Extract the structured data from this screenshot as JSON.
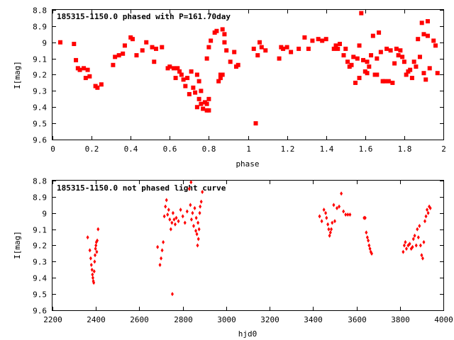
{
  "chart_data": [
    {
      "type": "scatter",
      "title": "185315-1150.0 phased with P=161.70day",
      "xlabel": "phase",
      "ylabel": "I[mag]",
      "xlim": [
        0,
        2
      ],
      "ylim": [
        8.8,
        9.6
      ],
      "y_inverted": true,
      "grid": false,
      "marker": "filled-square",
      "color": "#ff0000",
      "x_ticks": [
        0,
        0.2,
        0.4,
        0.6,
        0.8,
        1,
        1.2,
        1.4,
        1.6,
        1.8,
        2
      ],
      "x_tick_labels": [
        "0",
        "0.2",
        "0.4",
        "0.6",
        "0.8",
        "1",
        "1.2",
        "1.4",
        "1.6",
        "1.8",
        "2"
      ],
      "y_ticks": [
        8.8,
        8.9,
        9.0,
        9.1,
        9.2,
        9.3,
        9.4,
        9.5,
        9.6
      ],
      "y_tick_labels": [
        "8.8",
        "8.9",
        "9",
        "9.1",
        "9.2",
        "9.3",
        "9.4",
        "9.5",
        "9.6"
      ],
      "points": [
        [
          0.04,
          9.0
        ],
        [
          0.11,
          9.01
        ],
        [
          0.12,
          9.11
        ],
        [
          0.13,
          9.16
        ],
        [
          0.14,
          9.17
        ],
        [
          0.16,
          9.16
        ],
        [
          0.17,
          9.22
        ],
        [
          0.18,
          9.17
        ],
        [
          0.19,
          9.21
        ],
        [
          0.22,
          9.27
        ],
        [
          0.23,
          9.28
        ],
        [
          0.25,
          9.26
        ],
        [
          0.31,
          9.14
        ],
        [
          0.32,
          9.09
        ],
        [
          0.34,
          9.08
        ],
        [
          0.36,
          9.07
        ],
        [
          0.37,
          9.02
        ],
        [
          0.4,
          8.97
        ],
        [
          0.41,
          8.98
        ],
        [
          0.43,
          9.08
        ],
        [
          0.46,
          9.05
        ],
        [
          0.48,
          9.0
        ],
        [
          0.51,
          9.03
        ],
        [
          0.52,
          9.12
        ],
        [
          0.53,
          9.04
        ],
        [
          0.56,
          9.03
        ],
        [
          0.59,
          9.16
        ],
        [
          0.6,
          9.15
        ],
        [
          0.62,
          9.16
        ],
        [
          0.63,
          9.22
        ],
        [
          0.64,
          9.16
        ],
        [
          0.65,
          9.18
        ],
        [
          0.66,
          9.2
        ],
        [
          0.67,
          9.23
        ],
        [
          0.68,
          9.27
        ],
        [
          0.69,
          9.22
        ],
        [
          0.7,
          9.32
        ],
        [
          0.71,
          9.18
        ],
        [
          0.72,
          9.28
        ],
        [
          0.73,
          9.31
        ],
        [
          0.74,
          9.2
        ],
        [
          0.74,
          9.4
        ],
        [
          0.75,
          9.35
        ],
        [
          0.75,
          9.24
        ],
        [
          0.76,
          9.38
        ],
        [
          0.76,
          9.3
        ],
        [
          0.77,
          9.41
        ],
        [
          0.78,
          9.37
        ],
        [
          0.79,
          9.42
        ],
        [
          0.79,
          9.38
        ],
        [
          0.8,
          9.42
        ],
        [
          0.8,
          9.35
        ],
        [
          0.79,
          9.1
        ],
        [
          0.8,
          9.03
        ],
        [
          0.81,
          8.99
        ],
        [
          0.83,
          8.94
        ],
        [
          0.84,
          8.93
        ],
        [
          0.85,
          9.24
        ],
        [
          0.86,
          9.2
        ],
        [
          0.86,
          9.22
        ],
        [
          0.87,
          9.2
        ],
        [
          0.87,
          8.92
        ],
        [
          0.88,
          8.95
        ],
        [
          0.88,
          9.0
        ],
        [
          0.89,
          9.05
        ],
        [
          0.91,
          9.12
        ],
        [
          0.93,
          9.06
        ],
        [
          0.94,
          9.15
        ],
        [
          0.95,
          9.14
        ],
        [
          1.03,
          9.04
        ],
        [
          1.04,
          9.5
        ],
        [
          1.05,
          9.08
        ],
        [
          1.06,
          9.0
        ],
        [
          1.07,
          9.03
        ],
        [
          1.09,
          9.05
        ],
        [
          1.16,
          9.1
        ],
        [
          1.17,
          9.03
        ],
        [
          1.18,
          9.04
        ],
        [
          1.2,
          9.03
        ],
        [
          1.22,
          9.06
        ],
        [
          1.26,
          9.04
        ],
        [
          1.29,
          8.97
        ],
        [
          1.31,
          9.04
        ],
        [
          1.33,
          8.99
        ],
        [
          1.36,
          8.98
        ],
        [
          1.38,
          8.99
        ],
        [
          1.4,
          8.98
        ],
        [
          1.44,
          9.04
        ],
        [
          1.45,
          9.02
        ],
        [
          1.46,
          9.04
        ],
        [
          1.47,
          9.01
        ],
        [
          1.49,
          9.08
        ],
        [
          1.5,
          9.04
        ],
        [
          1.51,
          9.12
        ],
        [
          1.52,
          9.15
        ],
        [
          1.53,
          9.14
        ],
        [
          1.54,
          9.09
        ],
        [
          1.55,
          9.25
        ],
        [
          1.56,
          9.1
        ],
        [
          1.57,
          9.22
        ],
        [
          1.58,
          8.82
        ],
        [
          1.59,
          9.11
        ],
        [
          1.6,
          9.18
        ],
        [
          1.61,
          9.19
        ],
        [
          1.61,
          9.12
        ],
        [
          1.62,
          9.15
        ],
        [
          1.63,
          9.08
        ],
        [
          1.64,
          8.96
        ],
        [
          1.65,
          9.2
        ],
        [
          1.66,
          9.2
        ],
        [
          1.67,
          8.94
        ],
        [
          1.68,
          9.06
        ],
        [
          1.69,
          9.24
        ],
        [
          1.7,
          9.24
        ],
        [
          1.71,
          9.04
        ],
        [
          1.72,
          9.24
        ],
        [
          1.73,
          9.05
        ],
        [
          1.74,
          9.25
        ],
        [
          1.75,
          9.13
        ],
        [
          1.76,
          9.04
        ],
        [
          1.77,
          9.08
        ],
        [
          1.78,
          9.05
        ],
        [
          1.79,
          9.09
        ],
        [
          1.8,
          9.12
        ],
        [
          1.81,
          9.2
        ],
        [
          1.82,
          9.18
        ],
        [
          1.83,
          9.17
        ],
        [
          1.84,
          9.22
        ],
        [
          1.85,
          9.12
        ],
        [
          1.86,
          9.15
        ],
        [
          1.87,
          8.98
        ],
        [
          1.88,
          9.09
        ],
        [
          1.89,
          8.88
        ],
        [
          1.9,
          9.19
        ],
        [
          1.91,
          9.23
        ],
        [
          1.92,
          8.96
        ],
        [
          1.93,
          9.16
        ],
        [
          1.95,
          8.99
        ],
        [
          1.96,
          9.02
        ],
        [
          1.97,
          9.19
        ],
        [
          1.92,
          8.87
        ],
        [
          1.9,
          8.95
        ],
        [
          1.66,
          9.1
        ],
        [
          1.57,
          9.02
        ]
      ]
    },
    {
      "type": "scatter",
      "title": "185315-1150.0 not phased light curve",
      "xlabel": "hjd0",
      "ylabel": "I[mag]",
      "xlim": [
        2200,
        4000
      ],
      "ylim": [
        8.8,
        9.6
      ],
      "y_inverted": true,
      "grid": false,
      "marker": "filled-diamond",
      "color": "#ff0000",
      "x_ticks": [
        2200,
        2400,
        2600,
        2800,
        3000,
        3200,
        3400,
        3600,
        3800,
        4000
      ],
      "x_tick_labels": [
        "2200",
        "2400",
        "2600",
        "2800",
        "3000",
        "3200",
        "3400",
        "3600",
        "3800",
        "4000"
      ],
      "y_ticks": [
        8.8,
        8.9,
        9.0,
        9.1,
        9.2,
        9.3,
        9.4,
        9.5,
        9.6
      ],
      "y_tick_labels": [
        "8.8",
        "8.9",
        "9",
        "9.1",
        "9.2",
        "9.3",
        "9.4",
        "9.5",
        "9.6"
      ],
      "points": [
        [
          2362,
          9.15
        ],
        [
          2372,
          9.23
        ],
        [
          2376,
          9.28
        ],
        [
          2379,
          9.32
        ],
        [
          2382,
          9.35
        ],
        [
          2384,
          9.38
        ],
        [
          2386,
          9.4
        ],
        [
          2388,
          9.42
        ],
        [
          2390,
          9.43
        ],
        [
          2392,
          9.36
        ],
        [
          2394,
          9.3
        ],
        [
          2396,
          9.26
        ],
        [
          2398,
          9.22
        ],
        [
          2400,
          9.2
        ],
        [
          2402,
          9.18
        ],
        [
          2404,
          9.24
        ],
        [
          2406,
          9.17
        ],
        [
          2410,
          9.1
        ],
        [
          2684,
          9.21
        ],
        [
          2695,
          9.32
        ],
        [
          2700,
          9.28
        ],
        [
          2705,
          9.23
        ],
        [
          2710,
          9.18
        ],
        [
          2715,
          9.02
        ],
        [
          2720,
          8.96
        ],
        [
          2725,
          8.92
        ],
        [
          2730,
          9.01
        ],
        [
          2735,
          8.98
        ],
        [
          2740,
          9.04
        ],
        [
          2745,
          9.1
        ],
        [
          2750,
          9.06
        ],
        [
          2752,
          9.5
        ],
        [
          2755,
          9.0
        ],
        [
          2760,
          9.04
        ],
        [
          2765,
          9.07
        ],
        [
          2770,
          9.03
        ],
        [
          2780,
          9.05
        ],
        [
          2790,
          8.98
        ],
        [
          2800,
          9.02
        ],
        [
          2810,
          9.06
        ],
        [
          2820,
          8.99
        ],
        [
          2830,
          8.85
        ],
        [
          2835,
          8.95
        ],
        [
          2838,
          8.81
        ],
        [
          2840,
          9.04
        ],
        [
          2845,
          9.0
        ],
        [
          2850,
          9.08
        ],
        [
          2855,
          8.97
        ],
        [
          2860,
          9.11
        ],
        [
          2862,
          9.03
        ],
        [
          2865,
          9.13
        ],
        [
          2868,
          9.2
        ],
        [
          2870,
          9.06
        ],
        [
          2872,
          9.16
        ],
        [
          2875,
          9.1
        ],
        [
          2878,
          9.0
        ],
        [
          2880,
          8.96
        ],
        [
          2885,
          8.93
        ],
        [
          2890,
          8.87
        ],
        [
          3430,
          9.02
        ],
        [
          3440,
          9.05
        ],
        [
          3450,
          8.98
        ],
        [
          3458,
          9.0
        ],
        [
          3462,
          9.03
        ],
        [
          3468,
          9.07
        ],
        [
          3472,
          9.1
        ],
        [
          3476,
          9.14
        ],
        [
          3480,
          9.12
        ],
        [
          3484,
          9.1
        ],
        [
          3488,
          9.06
        ],
        [
          3495,
          8.95
        ],
        [
          3500,
          9.05
        ],
        [
          3510,
          8.97
        ],
        [
          3520,
          8.96
        ],
        [
          3530,
          8.88
        ],
        [
          3540,
          8.99
        ],
        [
          3550,
          9.01
        ],
        [
          3560,
          9.01
        ],
        [
          3570,
          9.01
        ],
        [
          3635,
          9.03
        ],
        [
          3640,
          9.03
        ],
        [
          3645,
          9.12
        ],
        [
          3650,
          9.15
        ],
        [
          3654,
          9.17
        ],
        [
          3658,
          9.2
        ],
        [
          3662,
          9.22
        ],
        [
          3666,
          9.24
        ],
        [
          3670,
          9.25
        ],
        [
          3815,
          9.24
        ],
        [
          3820,
          9.2
        ],
        [
          3825,
          9.18
        ],
        [
          3830,
          9.22
        ],
        [
          3838,
          9.2
        ],
        [
          3845,
          9.19
        ],
        [
          3852,
          9.22
        ],
        [
          3858,
          9.21
        ],
        [
          3862,
          9.16
        ],
        [
          3868,
          9.14
        ],
        [
          3875,
          9.2
        ],
        [
          3880,
          9.1
        ],
        [
          3885,
          9.15
        ],
        [
          3890,
          9.08
        ],
        [
          3895,
          9.2
        ],
        [
          3900,
          9.26
        ],
        [
          3905,
          9.28
        ],
        [
          3910,
          9.18
        ],
        [
          3915,
          9.05
        ],
        [
          3920,
          9.02
        ],
        [
          3925,
          8.98
        ],
        [
          3930,
          9.0
        ],
        [
          3935,
          8.96
        ],
        [
          3940,
          8.97
        ]
      ]
    }
  ]
}
